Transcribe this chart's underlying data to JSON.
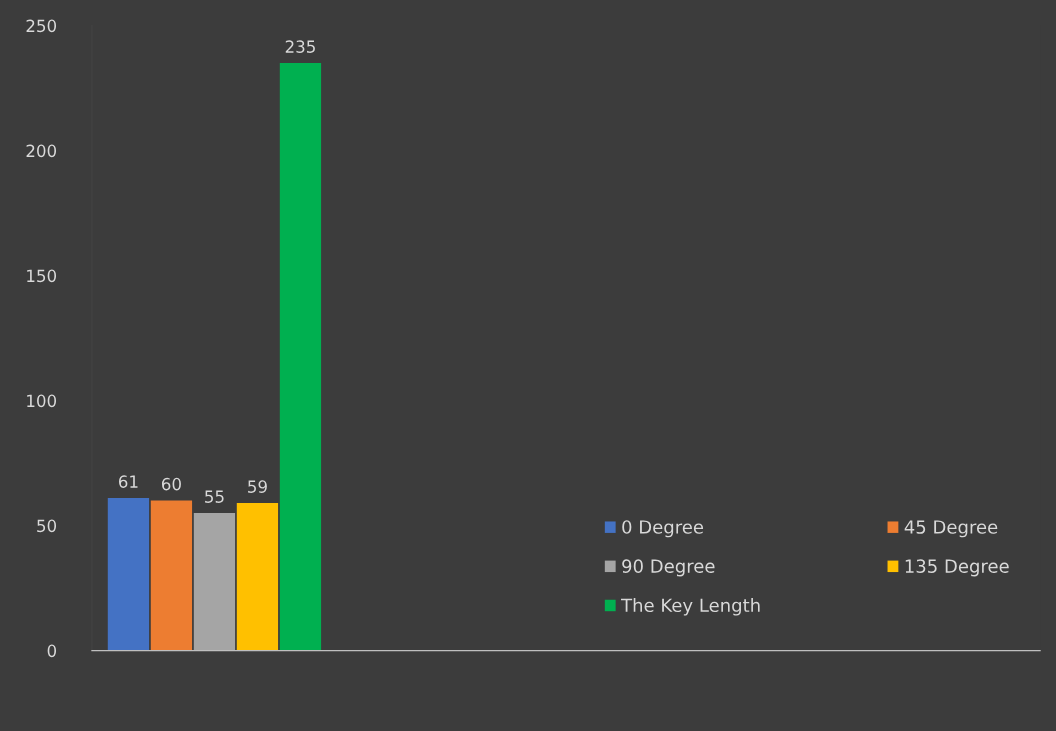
{
  "chart_data": {
    "type": "bar",
    "categories": [
      null
    ],
    "series": [
      {
        "name": "0 Degree",
        "color": "#4472c4",
        "values": [
          61
        ]
      },
      {
        "name": "45 Degree",
        "color": "#ed7d31",
        "values": [
          60
        ]
      },
      {
        "name": "90 Degree",
        "color": "#a5a5a5",
        "values": [
          55
        ]
      },
      {
        "name": "135 Degree",
        "color": "#ffc000",
        "values": [
          59
        ]
      },
      {
        "name": "The Key Length",
        "color": "#00b050",
        "values": [
          235
        ]
      }
    ],
    "ylim": [
      0,
      250
    ],
    "yticks": [
      0,
      50,
      100,
      150,
      200,
      250
    ],
    "grid": false,
    "legend": "bottom right",
    "data_labels": true
  }
}
